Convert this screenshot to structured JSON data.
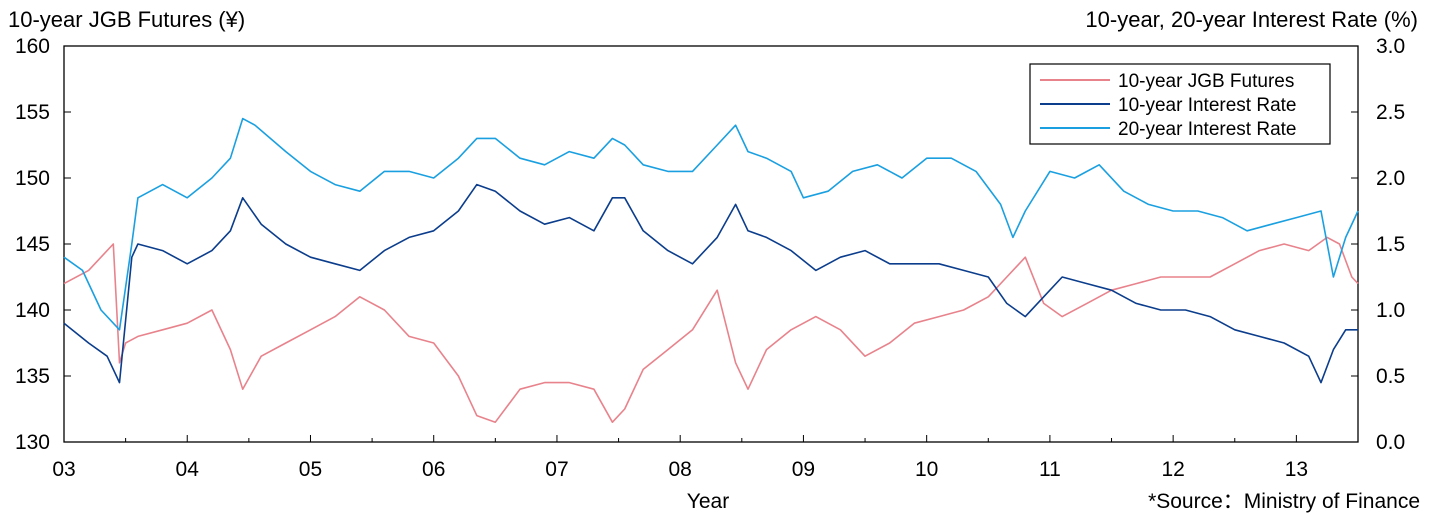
{
  "chart_data": {
    "type": "line",
    "title_left": "10-year JGB Futures (¥)",
    "title_right": "10-year, 20-year Interest Rate (%)",
    "xlabel": "Year",
    "source": "*Source：Ministry of Finance",
    "x_ticks": [
      "03",
      "04",
      "05",
      "06",
      "07",
      "08",
      "09",
      "10",
      "11",
      "12",
      "13"
    ],
    "x_range": [
      2003.0,
      2013.5
    ],
    "y_left": {
      "range": [
        130,
        160
      ],
      "ticks": [
        "130",
        "135",
        "140",
        "145",
        "150",
        "155",
        "160"
      ]
    },
    "y_right": {
      "range": [
        0.0,
        3.0
      ],
      "ticks": [
        "0.0",
        "0.5",
        "1.0",
        "1.5",
        "2.0",
        "2.5",
        "3.0"
      ]
    },
    "legend_position": "top-right",
    "grid": false,
    "series": [
      {
        "name": "10-year JGB Futures",
        "axis": "left",
        "color": "#e8838c",
        "x": [
          2003.0,
          2003.2,
          2003.4,
          2003.45,
          2003.5,
          2003.6,
          2003.8,
          2004.0,
          2004.2,
          2004.35,
          2004.45,
          2004.6,
          2004.8,
          2005.0,
          2005.2,
          2005.4,
          2005.6,
          2005.8,
          2006.0,
          2006.2,
          2006.35,
          2006.5,
          2006.7,
          2006.9,
          2007.1,
          2007.3,
          2007.45,
          2007.55,
          2007.7,
          2007.9,
          2008.1,
          2008.3,
          2008.45,
          2008.55,
          2008.7,
          2008.9,
          2009.1,
          2009.3,
          2009.5,
          2009.7,
          2009.9,
          2010.1,
          2010.3,
          2010.5,
          2010.65,
          2010.8,
          2010.95,
          2011.1,
          2011.3,
          2011.5,
          2011.7,
          2011.9,
          2012.1,
          2012.3,
          2012.5,
          2012.7,
          2012.9,
          2013.1,
          2013.25,
          2013.35,
          2013.45,
          2013.5
        ],
        "y": [
          142.0,
          143.0,
          145.0,
          136.0,
          137.5,
          138.0,
          138.5,
          139.0,
          140.0,
          137.0,
          134.0,
          136.5,
          137.5,
          138.5,
          139.5,
          141.0,
          140.0,
          138.0,
          137.5,
          135.0,
          132.0,
          131.5,
          134.0,
          134.5,
          134.5,
          134.0,
          131.5,
          132.5,
          135.5,
          137.0,
          138.5,
          141.5,
          136.0,
          134.0,
          137.0,
          138.5,
          139.5,
          138.5,
          136.5,
          137.5,
          139.0,
          139.5,
          140.0,
          141.0,
          142.5,
          144.0,
          140.5,
          139.5,
          140.5,
          141.5,
          142.0,
          142.5,
          142.5,
          142.5,
          143.5,
          144.5,
          145.0,
          144.5,
          145.5,
          145.0,
          142.5,
          142.0
        ]
      },
      {
        "name": "10-year Interest Rate",
        "axis": "right",
        "color": "#0b3d8c",
        "x": [
          2003.0,
          2003.2,
          2003.35,
          2003.45,
          2003.55,
          2003.6,
          2003.8,
          2004.0,
          2004.2,
          2004.35,
          2004.45,
          2004.6,
          2004.8,
          2005.0,
          2005.2,
          2005.4,
          2005.6,
          2005.8,
          2006.0,
          2006.2,
          2006.35,
          2006.5,
          2006.7,
          2006.9,
          2007.1,
          2007.3,
          2007.45,
          2007.55,
          2007.7,
          2007.9,
          2008.1,
          2008.3,
          2008.45,
          2008.55,
          2008.7,
          2008.9,
          2009.1,
          2009.3,
          2009.5,
          2009.7,
          2009.9,
          2010.1,
          2010.3,
          2010.5,
          2010.65,
          2010.8,
          2010.95,
          2011.1,
          2011.3,
          2011.5,
          2011.7,
          2011.9,
          2012.1,
          2012.3,
          2012.5,
          2012.7,
          2012.9,
          2013.1,
          2013.2,
          2013.3,
          2013.4,
          2013.5
        ],
        "y": [
          0.9,
          0.75,
          0.65,
          0.45,
          1.4,
          1.5,
          1.45,
          1.35,
          1.45,
          1.6,
          1.85,
          1.65,
          1.5,
          1.4,
          1.35,
          1.3,
          1.45,
          1.55,
          1.6,
          1.75,
          1.95,
          1.9,
          1.75,
          1.65,
          1.7,
          1.6,
          1.85,
          1.85,
          1.6,
          1.45,
          1.35,
          1.55,
          1.8,
          1.6,
          1.55,
          1.45,
          1.3,
          1.4,
          1.45,
          1.35,
          1.35,
          1.35,
          1.3,
          1.25,
          1.05,
          0.95,
          1.1,
          1.25,
          1.2,
          1.15,
          1.05,
          1.0,
          1.0,
          0.95,
          0.85,
          0.8,
          0.75,
          0.65,
          0.45,
          0.7,
          0.85,
          0.85
        ]
      },
      {
        "name": "20-year Interest Rate",
        "axis": "right",
        "color": "#1aa0e0",
        "x": [
          2003.0,
          2003.15,
          2003.3,
          2003.45,
          2003.55,
          2003.6,
          2003.8,
          2004.0,
          2004.2,
          2004.35,
          2004.45,
          2004.55,
          2004.8,
          2005.0,
          2005.2,
          2005.4,
          2005.6,
          2005.8,
          2006.0,
          2006.2,
          2006.35,
          2006.5,
          2006.7,
          2006.9,
          2007.1,
          2007.3,
          2007.45,
          2007.55,
          2007.7,
          2007.9,
          2008.1,
          2008.3,
          2008.45,
          2008.55,
          2008.7,
          2008.9,
          2009.0,
          2009.2,
          2009.4,
          2009.6,
          2009.8,
          2010.0,
          2010.2,
          2010.4,
          2010.6,
          2010.7,
          2010.8,
          2011.0,
          2011.2,
          2011.4,
          2011.6,
          2011.8,
          2012.0,
          2012.2,
          2012.4,
          2012.6,
          2012.8,
          2013.0,
          2013.2,
          2013.3,
          2013.4,
          2013.5
        ],
        "y": [
          1.4,
          1.3,
          1.0,
          0.85,
          1.5,
          1.85,
          1.95,
          1.85,
          2.0,
          2.15,
          2.45,
          2.4,
          2.2,
          2.05,
          1.95,
          1.9,
          2.05,
          2.05,
          2.0,
          2.15,
          2.3,
          2.3,
          2.15,
          2.1,
          2.2,
          2.15,
          2.3,
          2.25,
          2.1,
          2.05,
          2.05,
          2.25,
          2.4,
          2.2,
          2.15,
          2.05,
          1.85,
          1.9,
          2.05,
          2.1,
          2.0,
          2.15,
          2.15,
          2.05,
          1.8,
          1.55,
          1.75,
          2.05,
          2.0,
          2.1,
          1.9,
          1.8,
          1.75,
          1.75,
          1.7,
          1.6,
          1.65,
          1.7,
          1.75,
          1.25,
          1.55,
          1.75
        ]
      }
    ]
  }
}
